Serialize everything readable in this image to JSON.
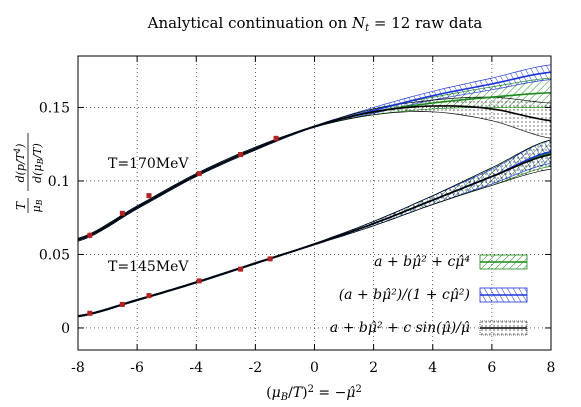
{
  "chart_data": {
    "type": "line",
    "title": "Analytical continuation on N_t = 12 raw data",
    "xlabel": "(μ_B/T)² = −μ̂²",
    "ylabel": "T/μ_B · d(p/T⁴)/d(μ_B/T)",
    "xlim": [
      -8,
      8
    ],
    "ylim": [
      -0.015,
      0.185
    ],
    "x_ticks": [
      -8,
      -6,
      -4,
      -2,
      0,
      2,
      4,
      6,
      8
    ],
    "x_tick_labels": [
      "-8",
      "-6",
      "-4",
      "-2",
      "0",
      "2",
      "4",
      "6",
      "8"
    ],
    "y_ticks": [
      0,
      0.05,
      0.1,
      0.15
    ],
    "y_tick_labels": [
      "0",
      "0.05",
      "0.1",
      "0.15"
    ],
    "grid": true,
    "legend_position": "bottom-right",
    "annotations": [
      "T=170MeV",
      "T=145MeV"
    ],
    "legend": [
      {
        "label": "a + bμ̂² + cμ̂⁴",
        "color": "#1a8a1a"
      },
      {
        "label": "(a + bμ̂²)/(1 + cμ̂²)",
        "color": "#1a32d6"
      },
      {
        "label": "a + bμ̂² + c sin(μ̂)/μ̂",
        "color": "#000000"
      }
    ],
    "series": [
      {
        "temperature": "170MeV",
        "data_x": [
          -7.6,
          -6.5,
          -5.6,
          -3.9,
          -2.5,
          -1.3
        ],
        "data_y": [
          0.063,
          0.078,
          0.09,
          0.105,
          0.118,
          0.129
        ],
        "data_err": [
          0.002,
          0.001,
          0.001,
          0.001,
          0.001,
          0.001
        ],
        "curve_x": [
          -8,
          -6,
          -4,
          -2,
          0,
          2,
          4,
          6,
          8
        ],
        "fit_poly4": [
          0.06,
          0.082,
          0.104,
          0.122,
          0.137,
          0.147,
          0.153,
          0.157,
          0.16
        ],
        "fit_poly4_band": [
          0.001,
          0.001,
          0.001,
          0.001,
          0.0005,
          0.002,
          0.004,
          0.007,
          0.01
        ],
        "fit_pade": [
          0.06,
          0.082,
          0.104,
          0.122,
          0.137,
          0.148,
          0.158,
          0.166,
          0.174
        ],
        "fit_pade_band": [
          0.001,
          0.001,
          0.001,
          0.001,
          0.0005,
          0.002,
          0.003,
          0.004,
          0.005
        ],
        "fit_sin": [
          0.06,
          0.082,
          0.104,
          0.122,
          0.137,
          0.147,
          0.151,
          0.149,
          0.141
        ],
        "fit_sin_band": [
          0.001,
          0.001,
          0.001,
          0.001,
          0.0005,
          0.002,
          0.004,
          0.008,
          0.012
        ]
      },
      {
        "temperature": "145MeV",
        "data_x": [
          -7.6,
          -6.5,
          -5.6,
          -3.9,
          -2.5,
          -1.5
        ],
        "data_y": [
          0.01,
          0.016,
          0.022,
          0.032,
          0.04,
          0.047
        ],
        "data_err": [
          0.001,
          0.001,
          0.001,
          0.001,
          0.001,
          0.001
        ],
        "curve_x": [
          -8,
          -6,
          -4,
          -2,
          0,
          2,
          4,
          6,
          8
        ],
        "fit_poly4": [
          0.008,
          0.019,
          0.031,
          0.044,
          0.057,
          0.071,
          0.087,
          0.103,
          0.119
        ],
        "fit_poly4_band": [
          0.0005,
          0.0005,
          0.0005,
          0.0005,
          0.0005,
          0.0015,
          0.003,
          0.006,
          0.009
        ],
        "fit_pade": [
          0.008,
          0.019,
          0.031,
          0.044,
          0.057,
          0.071,
          0.087,
          0.103,
          0.12
        ],
        "fit_pade_band": [
          0.0005,
          0.0005,
          0.0005,
          0.0005,
          0.0005,
          0.0015,
          0.003,
          0.005,
          0.008
        ],
        "fit_sin": [
          0.008,
          0.019,
          0.031,
          0.044,
          0.057,
          0.071,
          0.087,
          0.103,
          0.118
        ],
        "fit_sin_band": [
          0.0005,
          0.0005,
          0.0005,
          0.0005,
          0.0005,
          0.0015,
          0.003,
          0.006,
          0.01
        ]
      }
    ]
  }
}
